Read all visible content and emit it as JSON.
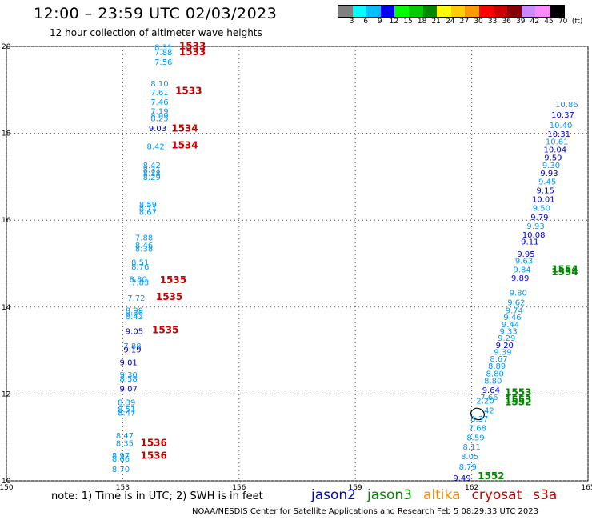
{
  "header": {
    "title": "12:00 – 23:59 UTC 02/03/2023",
    "subtitle": "12 hour collection of altimeter wave heights"
  },
  "color_scale": {
    "labels": [
      "3",
      "6",
      "9",
      "12",
      "15",
      "18",
      "21",
      "24",
      "27",
      "30",
      "33",
      "36",
      "39",
      "42",
      "45",
      "70"
    ],
    "unit": "(ft)",
    "colors": [
      "#808080",
      "#00ffff",
      "#00bfff",
      "#0000ff",
      "#00ff00",
      "#00cc00",
      "#008800",
      "#ffff00",
      "#ffcc00",
      "#ff9900",
      "#ff0000",
      "#cc0000",
      "#880000",
      "#cc88ff",
      "#ff88ff",
      "#000000"
    ]
  },
  "map": {
    "lon_ticks": [
      "150",
      "153",
      "156",
      "159",
      "162",
      "165"
    ],
    "lat_ticks": [
      "10",
      "12",
      "14",
      "16",
      "18",
      "20"
    ],
    "colors": {
      "jason2": "#0000cc",
      "jason3": "#008800",
      "altika": "#ff8800",
      "cryosat": "#cc0000",
      "s3a": "#cc0000",
      "swh_light": "#0099ff",
      "swh_dark": "#0000cc"
    },
    "time_labels": [
      {
        "text": "1533",
        "lon": 154.8,
        "lat": 19.94
      },
      {
        "text": "1533",
        "lon": 154.8,
        "lat": 19.8
      },
      {
        "text": "1533",
        "lon": 154.7,
        "lat": 18.9
      },
      {
        "text": "1534",
        "lon": 154.6,
        "lat": 18.04
      },
      {
        "text": "1534",
        "lon": 154.6,
        "lat": 17.65
      },
      {
        "text": "1535",
        "lon": 154.3,
        "lat": 14.55
      },
      {
        "text": "1535",
        "lon": 154.2,
        "lat": 14.16
      },
      {
        "text": "1535",
        "lon": 154.1,
        "lat": 13.4
      },
      {
        "text": "1536",
        "lon": 153.8,
        "lat": 10.8
      },
      {
        "text": "1536",
        "lon": 153.8,
        "lat": 10.51
      },
      {
        "text": "1552",
        "lon": 162.5,
        "lat": 10.04
      },
      {
        "text": "1553",
        "lon": 163.2,
        "lat": 11.96
      },
      {
        "text": "1553",
        "lon": 163.2,
        "lat": 11.8
      },
      {
        "text": "1552",
        "lon": 163.2,
        "lat": 11.74
      },
      {
        "text": "1554",
        "lon": 164.4,
        "lat": 14.8
      },
      {
        "text": "1554",
        "lon": 164.4,
        "lat": 14.73
      }
    ],
    "swh_readings": [
      {
        "v": "8.31",
        "lon": 154.05,
        "lat": 19.92,
        "c": "light"
      },
      {
        "v": "7.88",
        "lon": 154.05,
        "lat": 19.8,
        "c": "light"
      },
      {
        "v": "7.56",
        "lon": 154.05,
        "lat": 19.58,
        "c": "light"
      },
      {
        "v": "8.10",
        "lon": 153.95,
        "lat": 19.08,
        "c": "light"
      },
      {
        "v": "7.61",
        "lon": 153.95,
        "lat": 18.88,
        "c": "light"
      },
      {
        "v": "7.46",
        "lon": 153.95,
        "lat": 18.66,
        "c": "light"
      },
      {
        "v": "7.19",
        "lon": 153.95,
        "lat": 18.44,
        "c": "light"
      },
      {
        "v": "8.09",
        "lon": 153.95,
        "lat": 18.34,
        "c": "light"
      },
      {
        "v": "8.25",
        "lon": 153.95,
        "lat": 18.28,
        "c": "light"
      },
      {
        "v": "9.03",
        "lon": 153.9,
        "lat": 18.05,
        "c": "dark"
      },
      {
        "v": "8.42",
        "lon": 153.85,
        "lat": 17.63,
        "c": "light"
      },
      {
        "v": "8.42",
        "lon": 153.75,
        "lat": 17.2,
        "c": "light"
      },
      {
        "v": "8.31",
        "lon": 153.75,
        "lat": 17.1,
        "c": "light"
      },
      {
        "v": "8.38",
        "lon": 153.75,
        "lat": 17.02,
        "c": "light"
      },
      {
        "v": "8.29",
        "lon": 153.75,
        "lat": 16.92,
        "c": "light"
      },
      {
        "v": "8.59",
        "lon": 153.65,
        "lat": 16.3,
        "c": "light"
      },
      {
        "v": "8.71",
        "lon": 153.65,
        "lat": 16.22,
        "c": "light"
      },
      {
        "v": "8.67",
        "lon": 153.65,
        "lat": 16.12,
        "c": "light"
      },
      {
        "v": "7.88",
        "lon": 153.55,
        "lat": 15.53,
        "c": "light"
      },
      {
        "v": "8.46",
        "lon": 153.55,
        "lat": 15.36,
        "c": "light"
      },
      {
        "v": "8.38",
        "lon": 153.55,
        "lat": 15.28,
        "c": "light"
      },
      {
        "v": "8.51",
        "lon": 153.45,
        "lat": 14.96,
        "c": "light"
      },
      {
        "v": "8.76",
        "lon": 153.45,
        "lat": 14.86,
        "c": "light"
      },
      {
        "v": "8.80",
        "lon": 153.4,
        "lat": 14.58,
        "c": "light"
      },
      {
        "v": "7.83",
        "lon": 153.45,
        "lat": 14.5,
        "c": "light"
      },
      {
        "v": "7.72",
        "lon": 153.35,
        "lat": 14.14,
        "c": "light"
      },
      {
        "v": "8.99",
        "lon": 153.3,
        "lat": 13.86,
        "c": "light"
      },
      {
        "v": "9.36",
        "lon": 153.3,
        "lat": 13.8,
        "c": "light"
      },
      {
        "v": "8.42",
        "lon": 153.3,
        "lat": 13.72,
        "c": "light"
      },
      {
        "v": "9.05",
        "lon": 153.3,
        "lat": 13.38,
        "c": "dark"
      },
      {
        "v": "7.88",
        "lon": 153.25,
        "lat": 13.04,
        "c": "light"
      },
      {
        "v": "9.19",
        "lon": 153.25,
        "lat": 12.96,
        "c": "dark"
      },
      {
        "v": "9.01",
        "lon": 153.15,
        "lat": 12.66,
        "c": "dark"
      },
      {
        "v": "9.30",
        "lon": 153.15,
        "lat": 12.38,
        "c": "light"
      },
      {
        "v": "8.58",
        "lon": 153.15,
        "lat": 12.28,
        "c": "light"
      },
      {
        "v": "9.07",
        "lon": 153.15,
        "lat": 12.05,
        "c": "dark"
      },
      {
        "v": "8.39",
        "lon": 153.1,
        "lat": 11.74,
        "c": "light"
      },
      {
        "v": "8.51",
        "lon": 153.1,
        "lat": 11.58,
        "c": "light"
      },
      {
        "v": "8.47",
        "lon": 153.1,
        "lat": 11.5,
        "c": "light"
      },
      {
        "v": "8.47",
        "lon": 153.05,
        "lat": 10.98,
        "c": "light"
      },
      {
        "v": "8.35",
        "lon": 153.05,
        "lat": 10.8,
        "c": "light"
      },
      {
        "v": "8.97",
        "lon": 152.95,
        "lat": 10.52,
        "c": "light"
      },
      {
        "v": "8.66",
        "lon": 152.95,
        "lat": 10.44,
        "c": "light"
      },
      {
        "v": "8.70",
        "lon": 152.95,
        "lat": 10.2,
        "c": "light"
      },
      {
        "v": "9.49",
        "lon": 161.75,
        "lat": 10.0,
        "c": "dark"
      },
      {
        "v": "8.79",
        "lon": 161.9,
        "lat": 10.26,
        "c": "light"
      },
      {
        "v": "8.05",
        "lon": 161.95,
        "lat": 10.5,
        "c": "light"
      },
      {
        "v": "8.11",
        "lon": 162.0,
        "lat": 10.72,
        "c": "light"
      },
      {
        "v": "8.59",
        "lon": 162.1,
        "lat": 10.93,
        "c": "light"
      },
      {
        "v": "7.68",
        "lon": 162.15,
        "lat": 11.15,
        "c": "light"
      },
      {
        "v": "8.37",
        "lon": 162.2,
        "lat": 11.36,
        "c": "light"
      },
      {
        "v": "42",
        "lon": 162.45,
        "lat": 11.56,
        "c": "light"
      },
      {
        "v": "2.20",
        "lon": 162.35,
        "lat": 11.78,
        "c": "light"
      },
      {
        "v": "7.66",
        "lon": 162.45,
        "lat": 11.86,
        "c": "light"
      },
      {
        "v": "9.64",
        "lon": 162.5,
        "lat": 12.03,
        "c": "dark"
      },
      {
        "v": "8.80",
        "lon": 162.55,
        "lat": 12.24,
        "c": "light"
      },
      {
        "v": "8.80",
        "lon": 162.6,
        "lat": 12.4,
        "c": "light"
      },
      {
        "v": "8.89",
        "lon": 162.65,
        "lat": 12.58,
        "c": "light"
      },
      {
        "v": "8.67",
        "lon": 162.7,
        "lat": 12.74,
        "c": "light"
      },
      {
        "v": "9.39",
        "lon": 162.8,
        "lat": 12.9,
        "c": "light"
      },
      {
        "v": "9.20",
        "lon": 162.85,
        "lat": 13.06,
        "c": "dark"
      },
      {
        "v": "9.29",
        "lon": 162.9,
        "lat": 13.22,
        "c": "light"
      },
      {
        "v": "9.33",
        "lon": 162.95,
        "lat": 13.38,
        "c": "light"
      },
      {
        "v": "9.44",
        "lon": 163.0,
        "lat": 13.54,
        "c": "light"
      },
      {
        "v": "9.46",
        "lon": 163.05,
        "lat": 13.7,
        "c": "light"
      },
      {
        "v": "9.74",
        "lon": 163.1,
        "lat": 13.86,
        "c": "light"
      },
      {
        "v": "9.62",
        "lon": 163.15,
        "lat": 14.04,
        "c": "light"
      },
      {
        "v": "9.80",
        "lon": 163.2,
        "lat": 14.26,
        "c": "light"
      },
      {
        "v": "9.89",
        "lon": 163.25,
        "lat": 14.6,
        "c": "dark"
      },
      {
        "v": "9.84",
        "lon": 163.3,
        "lat": 14.8,
        "c": "light"
      },
      {
        "v": "9.63",
        "lon": 163.35,
        "lat": 15.0,
        "c": "light"
      },
      {
        "v": "9.95",
        "lon": 163.4,
        "lat": 15.16,
        "c": "dark"
      },
      {
        "v": "9.11",
        "lon": 163.5,
        "lat": 15.44,
        "c": "dark"
      },
      {
        "v": "10.08",
        "lon": 163.6,
        "lat": 15.6,
        "c": "dark"
      },
      {
        "v": "9.93",
        "lon": 163.65,
        "lat": 15.8,
        "c": "light"
      },
      {
        "v": "9.79",
        "lon": 163.75,
        "lat": 16.0,
        "c": "dark"
      },
      {
        "v": "9.50",
        "lon": 163.8,
        "lat": 16.22,
        "c": "light"
      },
      {
        "v": "10.01",
        "lon": 163.85,
        "lat": 16.42,
        "c": "dark"
      },
      {
        "v": "9.15",
        "lon": 163.9,
        "lat": 16.62,
        "c": "dark"
      },
      {
        "v": "9.45",
        "lon": 163.95,
        "lat": 16.82,
        "c": "light"
      },
      {
        "v": "9.93",
        "lon": 164.0,
        "lat": 17.02,
        "c": "dark"
      },
      {
        "v": "9.30",
        "lon": 164.05,
        "lat": 17.2,
        "c": "light"
      },
      {
        "v": "9.59",
        "lon": 164.1,
        "lat": 17.38,
        "c": "dark"
      },
      {
        "v": "10.04",
        "lon": 164.15,
        "lat": 17.56,
        "c": "dark"
      },
      {
        "v": "10.61",
        "lon": 164.2,
        "lat": 17.74,
        "c": "light"
      },
      {
        "v": "10.31",
        "lon": 164.25,
        "lat": 17.92,
        "c": "dark"
      },
      {
        "v": "10.40",
        "lon": 164.3,
        "lat": 18.12,
        "c": "light"
      },
      {
        "v": "10.37",
        "lon": 164.35,
        "lat": 18.36,
        "c": "dark"
      },
      {
        "v": "10.86",
        "lon": 164.45,
        "lat": 18.6,
        "c": "light"
      }
    ]
  },
  "notes": {
    "note": "note: 1) Time is in UTC; 2) SWH is in feet",
    "satellites": [
      {
        "name": "jason2",
        "color": "#0000cc"
      },
      {
        "name": "jason3",
        "color": "#008800"
      },
      {
        "name": "altika",
        "color": "#ff8800"
      },
      {
        "name": "cryosat",
        "color": "#cc0000"
      },
      {
        "name": "s3a",
        "color": "#cc0000"
      }
    ],
    "credit": "NOAA/NESDIS Center for Satellite Applications and Research    Feb  5 08:29:33 UTC 2023"
  }
}
